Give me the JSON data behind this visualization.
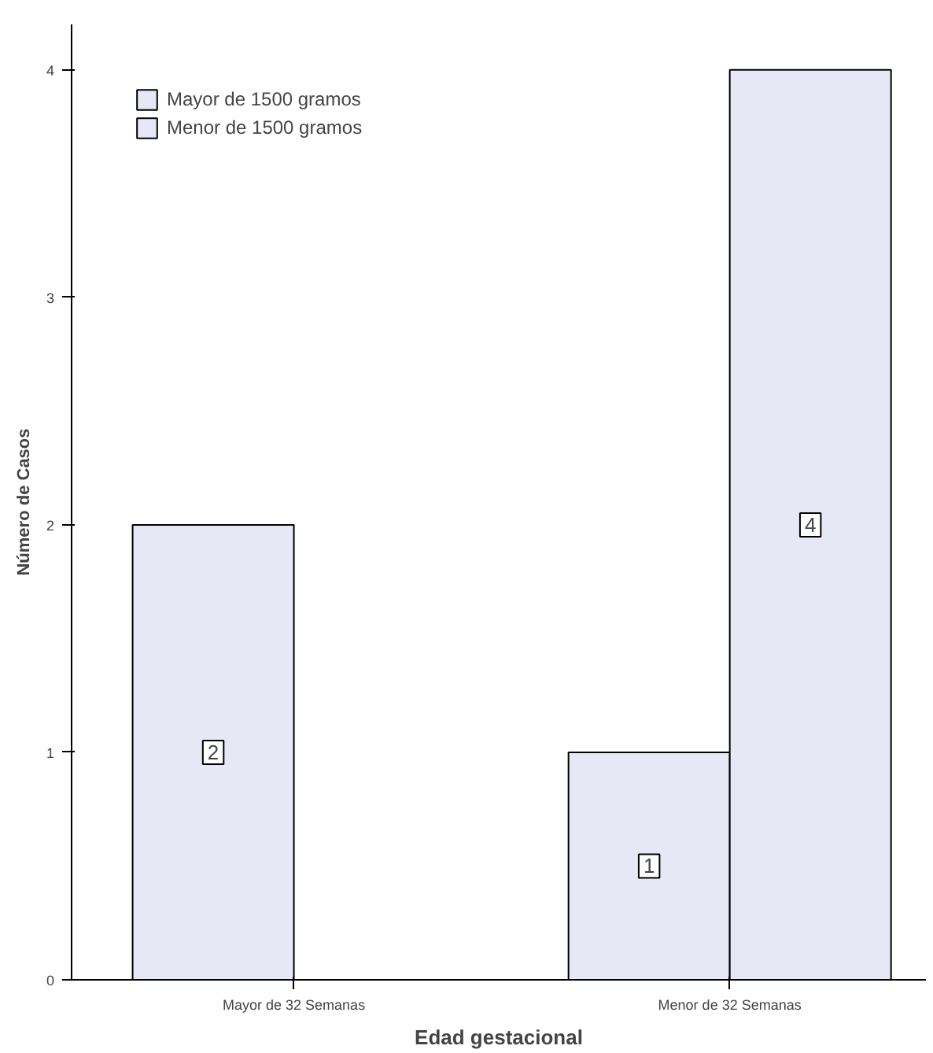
{
  "chart_data": {
    "type": "bar",
    "xlabel": "Edad gestacional",
    "ylabel": "Número de Casos",
    "categories": [
      "Mayor de 32 Semanas",
      "Menor de 32 Semanas"
    ],
    "series": [
      {
        "name": "Mayor de 1500 gramos",
        "color": "#e6e9f5",
        "values": [
          2,
          1
        ]
      },
      {
        "name": "Menor de 1500 gramos",
        "color": "#e6e9f5",
        "values": [
          null,
          4
        ]
      }
    ],
    "ylim": [
      0,
      4.2
    ],
    "yticks": [
      0,
      1,
      2,
      3,
      4
    ],
    "grid": false,
    "legend": "top left",
    "data_labels": true
  }
}
